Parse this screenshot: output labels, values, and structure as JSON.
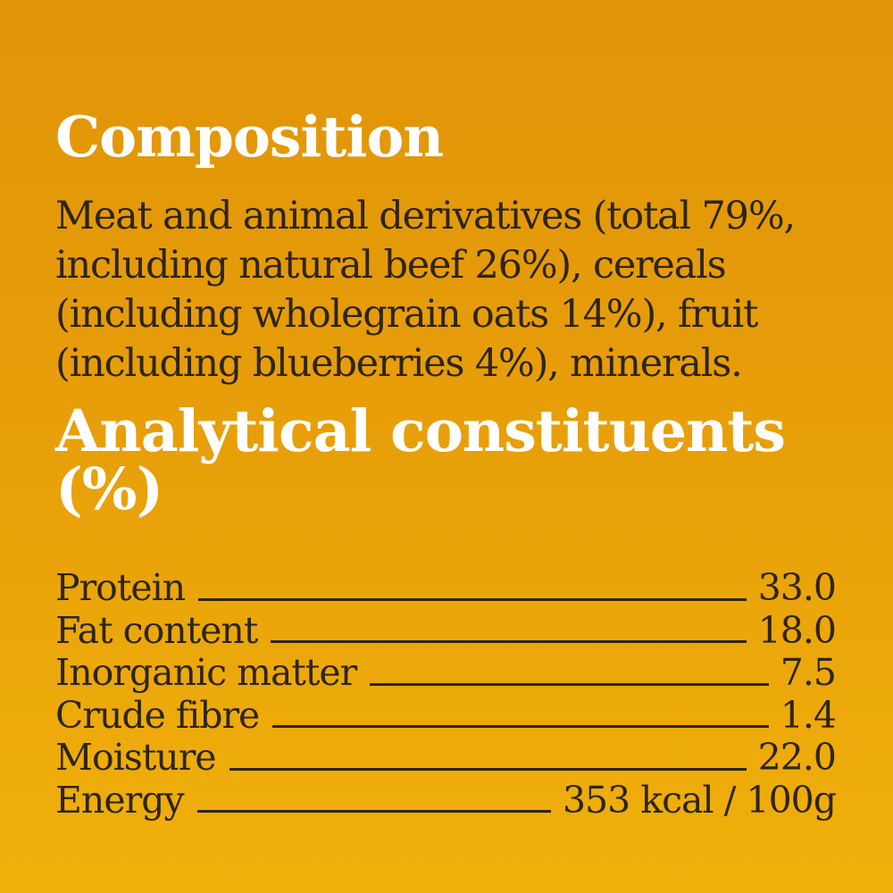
{
  "colors": {
    "background_top": "#e19408",
    "background_bottom": "#f0b00a",
    "heading_text": "#ffffff",
    "body_text": "#2d2516"
  },
  "composition": {
    "heading": "Composition",
    "body_lines": [
      "Meat and animal derivatives (total 79%,",
      "including natural beef 26%), cereals",
      "(including wholegrain oats 14%), fruit",
      "(including blueberries 4%), minerals."
    ]
  },
  "analytical": {
    "heading": "Analytical constituents (%)",
    "rows": [
      {
        "label": "Protein",
        "value": "33.0"
      },
      {
        "label": "Fat content",
        "value": "18.0"
      },
      {
        "label": "Inorganic matter",
        "value": "7.5"
      },
      {
        "label": "Crude fibre",
        "value": "1.4"
      },
      {
        "label": "Moisture",
        "value": "22.0"
      },
      {
        "label": "Energy",
        "value": "353 kcal / 100g"
      }
    ]
  }
}
